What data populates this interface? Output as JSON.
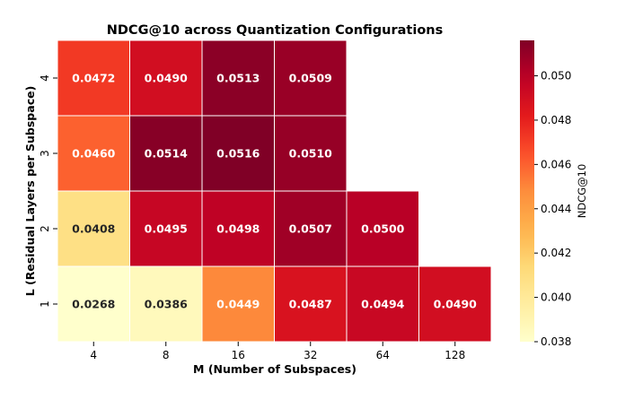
{
  "chart_data": {
    "type": "heatmap",
    "title": "NDCG@10 across Quantization Configurations",
    "xlabel": "M (Number of Subspaces)",
    "ylabel": "L (Residual Layers per Subspace)",
    "x_categories": [
      "4",
      "8",
      "16",
      "32",
      "64",
      "128"
    ],
    "y_categories": [
      "4",
      "3",
      "2",
      "1"
    ],
    "values": [
      [
        0.0472,
        0.049,
        0.0513,
        0.0509,
        null,
        null
      ],
      [
        0.046,
        0.0514,
        0.0516,
        0.051,
        null,
        null
      ],
      [
        0.0408,
        0.0495,
        0.0498,
        0.0507,
        0.05,
        null
      ],
      [
        0.0268,
        0.0386,
        0.0449,
        0.0487,
        0.0494,
        0.049
      ]
    ],
    "labels": [
      [
        "0.0472",
        "0.0490",
        "0.0513",
        "0.0509",
        "",
        ""
      ],
      [
        "0.0460",
        "0.0514",
        "0.0516",
        "0.0510",
        "",
        ""
      ],
      [
        "0.0408",
        "0.0495",
        "0.0498",
        "0.0507",
        "0.0500",
        ""
      ],
      [
        "0.0268",
        "0.0386",
        "0.0449",
        "0.0487",
        "0.0494",
        "0.0490"
      ]
    ],
    "colorbar": {
      "label": "NDCG@10",
      "range": [
        0.038,
        0.0516
      ],
      "ticks": [
        0.038,
        0.04,
        0.042,
        0.044,
        0.046,
        0.048,
        0.05
      ],
      "tick_labels": [
        "0.038",
        "0.040",
        "0.042",
        "0.044",
        "0.046",
        "0.048",
        "0.050"
      ],
      "colormap": "YlOrRd"
    }
  }
}
